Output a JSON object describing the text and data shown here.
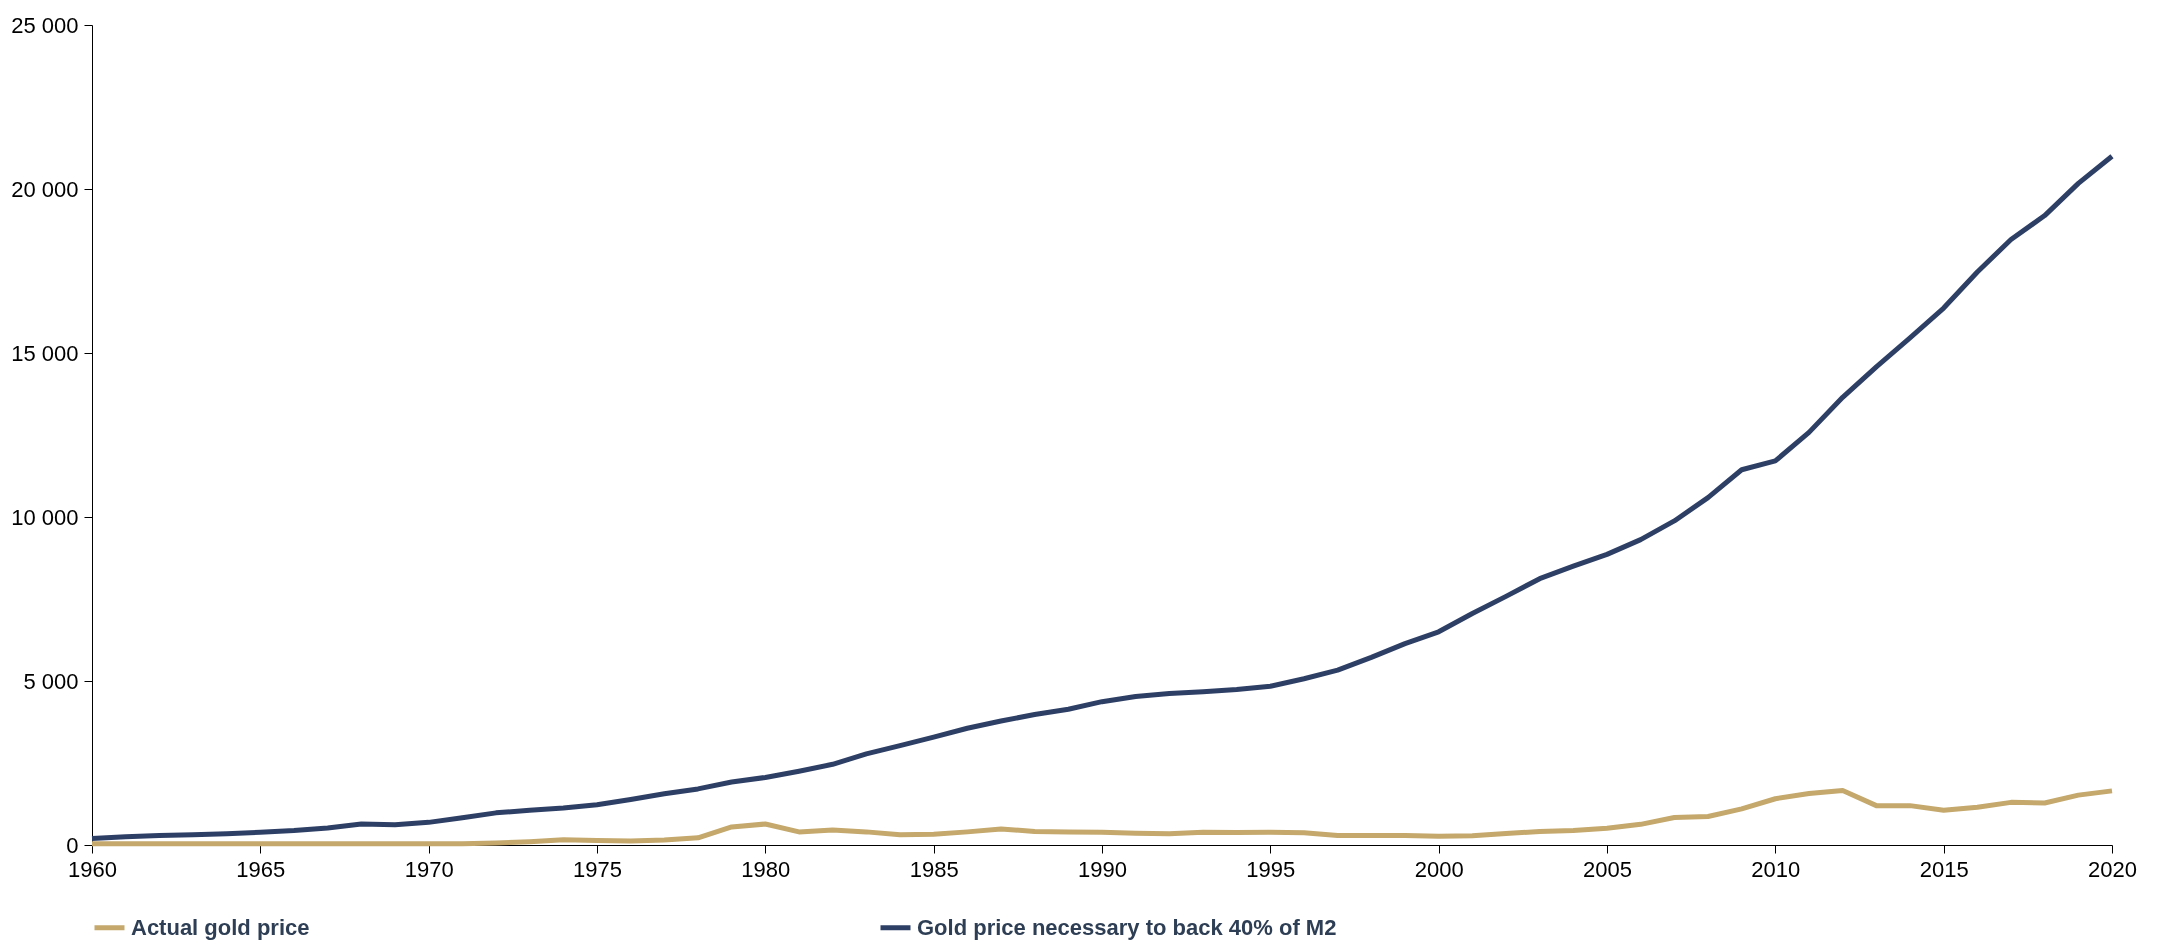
{
  "chart_data": {
    "type": "line",
    "x": [
      1960,
      1961,
      1962,
      1963,
      1964,
      1965,
      1966,
      1967,
      1968,
      1969,
      1970,
      1971,
      1972,
      1973,
      1974,
      1975,
      1976,
      1977,
      1978,
      1979,
      1980,
      1981,
      1982,
      1983,
      1984,
      1985,
      1986,
      1987,
      1988,
      1989,
      1990,
      1991,
      1992,
      1993,
      1994,
      1995,
      1996,
      1997,
      1998,
      1999,
      2000,
      2001,
      2002,
      2003,
      2004,
      2005,
      2006,
      2007,
      2008,
      2009,
      2010,
      2011,
      2012,
      2013,
      2014,
      2015,
      2016,
      2017,
      2018,
      2019,
      2020
    ],
    "series": [
      {
        "name": "Actual gold price",
        "color": "#c4a86c",
        "values": [
          35,
          35,
          35,
          35,
          35,
          35,
          35,
          35,
          39,
          41,
          36,
          41,
          60,
          100,
          160,
          140,
          125,
          150,
          220,
          550,
          640,
          400,
          460,
          400,
          310,
          330,
          400,
          490,
          410,
          400,
          390,
          360,
          340,
          390,
          380,
          390,
          370,
          290,
          290,
          290,
          270,
          280,
          350,
          410,
          440,
          510,
          630,
          840,
          870,
          1100,
          1410,
          1570,
          1660,
          1200,
          1200,
          1060,
          1150,
          1300,
          1280,
          1520,
          1650
        ]
      },
      {
        "name": "Gold price necessary to back 40% of M2",
        "color": "#2e3f66",
        "values": [
          200,
          250,
          290,
          310,
          340,
          390,
          440,
          520,
          640,
          620,
          690,
          830,
          980,
          1060,
          1130,
          1230,
          1390,
          1560,
          1710,
          1920,
          2060,
          2250,
          2460,
          2780,
          3030,
          3290,
          3560,
          3780,
          3980,
          4140,
          4370,
          4530,
          4620,
          4670,
          4740,
          4840,
          5070,
          5330,
          5720,
          6140,
          6500,
          7060,
          7580,
          8120,
          8500,
          8860,
          9310,
          9880,
          10590,
          11440,
          11710,
          12580,
          13650,
          14580,
          15460,
          16370,
          17470,
          18460,
          19190,
          20170,
          21000
        ]
      }
    ],
    "xlim": [
      1960,
      2020
    ],
    "xticks": [
      1960,
      1965,
      1970,
      1975,
      1980,
      1985,
      1990,
      1995,
      2000,
      2005,
      2010,
      2015,
      2020
    ],
    "ylim": [
      0,
      25000
    ],
    "yticks": [
      0,
      {
        "value": 5000,
        "label": "5 000"
      },
      {
        "value": 10000,
        "label": "10 000"
      },
      {
        "value": 15000,
        "label": "15 000"
      },
      {
        "value": 20000,
        "label": "20 000"
      },
      {
        "value": 25000,
        "label": "25 000"
      }
    ],
    "legend": "bottom",
    "grid": false
  }
}
